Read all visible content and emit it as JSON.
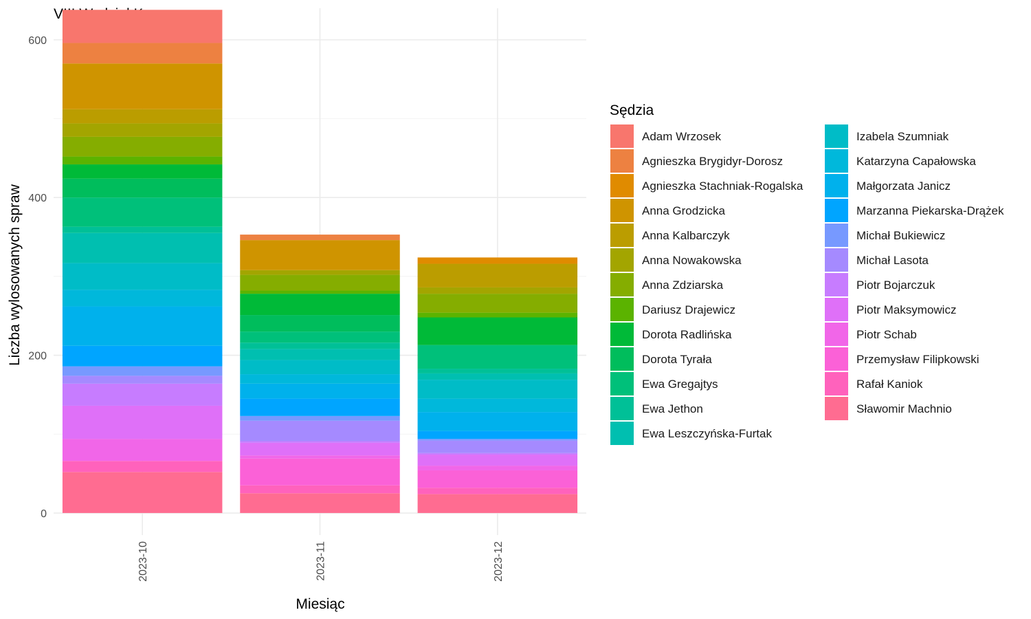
{
  "chart_data": {
    "type": "bar",
    "stacked": true,
    "title": "VIII Wydział Karny",
    "xlabel": "Miesiąc",
    "ylabel": "Liczba wylosowanych spraw",
    "ylim": [
      -28,
      640
    ],
    "yticks": [
      0,
      200,
      400,
      600
    ],
    "grid": true,
    "legend_title": "Sędzia",
    "legend_position": "right",
    "categories": [
      "2023-10",
      "2023-11",
      "2023-12"
    ],
    "series": [
      {
        "name": "Adam Wrzosek",
        "color": "#F8766D",
        "values": [
          42,
          0,
          0
        ]
      },
      {
        "name": "Agnieszka Brygidyr-Dorosz",
        "color": "#ED8141",
        "values": [
          26,
          7,
          0
        ]
      },
      {
        "name": "Agnieszka Stachniak-Rogalska",
        "color": "#E08B00",
        "values": [
          0,
          0,
          8
        ]
      },
      {
        "name": "Anna Grodzicka",
        "color": "#CF9400",
        "values": [
          58,
          38,
          0
        ]
      },
      {
        "name": "Anna Kalbarczyk",
        "color": "#BB9D00",
        "values": [
          18,
          0,
          30
        ]
      },
      {
        "name": "Anna Nowakowska",
        "color": "#A3A500",
        "values": [
          17,
          6,
          8
        ]
      },
      {
        "name": "Anna Zdziarska",
        "color": "#85AD00",
        "values": [
          25,
          20,
          24
        ]
      },
      {
        "name": "Dariusz Drajewicz",
        "color": "#5BB300",
        "values": [
          10,
          4,
          6
        ]
      },
      {
        "name": "Dorota Radlińska",
        "color": "#00BA38",
        "values": [
          18,
          27,
          35
        ]
      },
      {
        "name": "Dorota Tyrała",
        "color": "#00BD5C",
        "values": [
          24,
          21,
          0
        ]
      },
      {
        "name": "Ewa Gregajtys",
        "color": "#00C07A",
        "values": [
          37,
          14,
          30
        ]
      },
      {
        "name": "Ewa Jethon",
        "color": "#00C097",
        "values": [
          8,
          8,
          6
        ]
      },
      {
        "name": "Ewa Leszczyńska-Furtak",
        "color": "#00BFB0",
        "values": [
          38,
          14,
          8
        ]
      },
      {
        "name": "Izabela Szumniak",
        "color": "#00BCC7",
        "values": [
          34,
          18,
          24
        ]
      },
      {
        "name": "Katarzyna Capałowska",
        "color": "#00B8DB",
        "values": [
          21,
          12,
          17
        ]
      },
      {
        "name": "Małgorzata Janicz",
        "color": "#00B1EC",
        "values": [
          50,
          19,
          24
        ]
      },
      {
        "name": "Marzanna Piekarska-Drążek",
        "color": "#00A5FF",
        "values": [
          26,
          22,
          10
        ]
      },
      {
        "name": "Michał Bukiewicz",
        "color": "#7799FF",
        "values": [
          12,
          6,
          2
        ]
      },
      {
        "name": "Michał Lasota",
        "color": "#A58AFF",
        "values": [
          10,
          26,
          16
        ]
      },
      {
        "name": "Piotr Bojarczuk",
        "color": "#C77CFF",
        "values": [
          28,
          2,
          2
        ]
      },
      {
        "name": "Piotr Maksymowicz",
        "color": "#DF70F8",
        "values": [
          42,
          16,
          14
        ]
      },
      {
        "name": "Piotr Schab",
        "color": "#F166E8",
        "values": [
          28,
          4,
          6
        ]
      },
      {
        "name": "Przemysław Filipkowski",
        "color": "#FB61D7",
        "values": [
          0,
          34,
          22
        ]
      },
      {
        "name": "Rafał Kaniok",
        "color": "#FF62BC",
        "values": [
          14,
          10,
          8
        ]
      },
      {
        "name": "Sławomir Machnio",
        "color": "#FF6C91",
        "values": [
          52,
          25,
          24
        ]
      }
    ]
  }
}
